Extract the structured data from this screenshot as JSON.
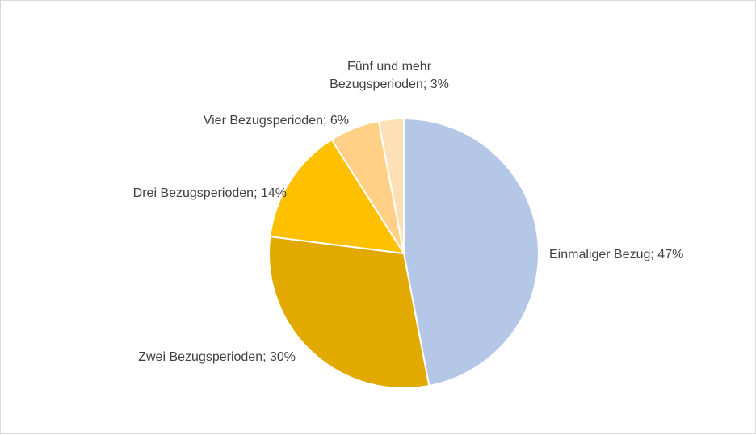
{
  "chart_data": {
    "type": "pie",
    "title": "",
    "slices": [
      {
        "label": "Einmaliger Bezug; 47%",
        "category": "Einmaliger Bezug",
        "value": 47,
        "color": "#b4c7e7"
      },
      {
        "label": "Zwei Bezugsperioden; 30%",
        "category": "Zwei Bezugsperioden",
        "value": 30,
        "color": "#e2aa00"
      },
      {
        "label": "Drei Bezugsperioden; 14%",
        "category": "Drei Bezugsperioden",
        "value": 14,
        "color": "#ffc000"
      },
      {
        "label": "Vier Bezugsperioden; 6%",
        "category": "Vier Bezugsperioden",
        "value": 6,
        "color": "#ffd086"
      },
      {
        "label_lines": [
          "Fünf und mehr",
          "Bezugsperioden; 3%"
        ],
        "category": "Fünf und mehr Bezugsperioden",
        "value": 3,
        "color": "#fde0b6"
      }
    ],
    "legend": "none",
    "start_angle": "12 o'clock",
    "direction": "clockwise"
  }
}
